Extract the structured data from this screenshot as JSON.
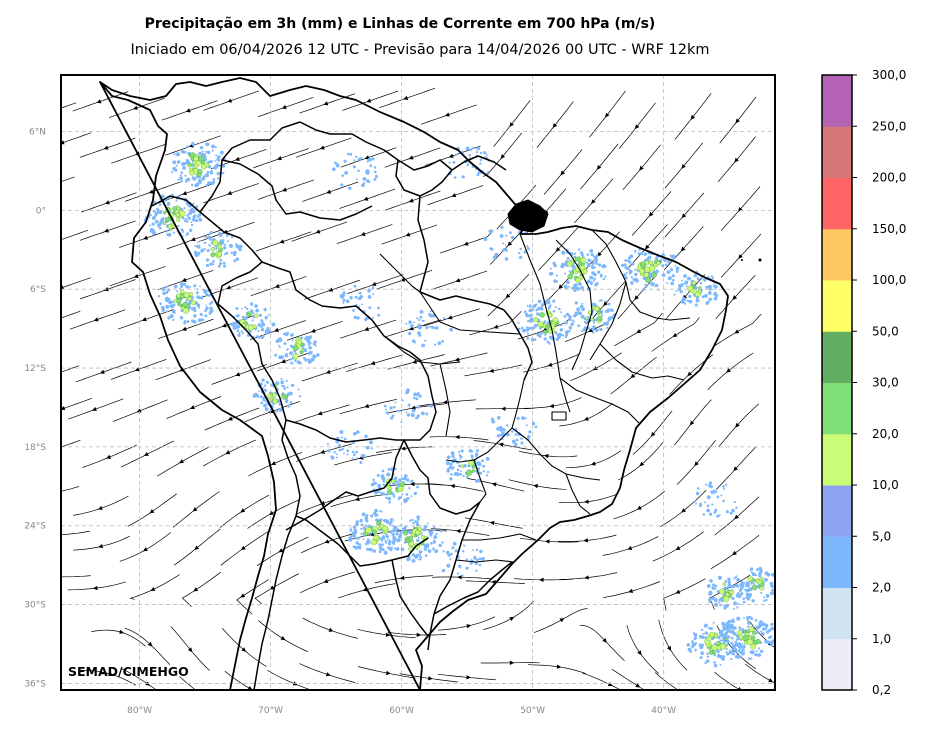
{
  "header": {
    "title": "Precipitação em 3h (mm) e Linhas de Corrente em 700 hPa (m/s)",
    "subtitle": "Iniciado em 06/04/2026 12 UTC - Previsão para 14/04/2026 00 UTC - WRF 12km"
  },
  "map": {
    "credit": "SEMAD/CIMEHGO",
    "lat_labels": [
      "6°N",
      "0°",
      "6°S",
      "12°S",
      "18°S",
      "24°S",
      "30°S",
      "36°S"
    ],
    "lon_labels": [
      "80°W",
      "70°W",
      "60°W",
      "50°W",
      "40°W"
    ],
    "lat_values": [
      6,
      0,
      -6,
      -12,
      -18,
      -24,
      -30,
      -36
    ],
    "lon_values": [
      -80,
      -70,
      -60,
      -50,
      -40
    ],
    "extent": {
      "lon_min": -86,
      "lon_max": -31.5,
      "lat_min": -36.5,
      "lat_max": 10.3
    },
    "grid_color": "#bbbbbb",
    "coast_color": "#000000"
  },
  "colorbar": {
    "labels": [
      "0,2",
      "1,0",
      "2,0",
      "5,0",
      "10,0",
      "20,0",
      "30,0",
      "50,0",
      "100,0",
      "150,0",
      "200,0",
      "250,0",
      "300,0"
    ],
    "colors": [
      "#ededfa",
      "#d0e4ef",
      "#7db8fd",
      "#8ea4f3",
      "#cbfc77",
      "#80de77",
      "#62ae62",
      "#ffff66",
      "#ffc865",
      "#ff6464",
      "#d57877",
      "#b563b5"
    ]
  },
  "rain_cells": [
    {
      "lon": -75.5,
      "lat": 3.5,
      "intensity": "high"
    },
    {
      "lon": -77.5,
      "lat": -0.5,
      "intensity": "high"
    },
    {
      "lon": -76.5,
      "lat": -7.0,
      "intensity": "high"
    },
    {
      "lon": -74.0,
      "lat": -3.0,
      "intensity": "med"
    },
    {
      "lon": -71.5,
      "lat": -8.5,
      "intensity": "med"
    },
    {
      "lon": -68.0,
      "lat": -10.5,
      "intensity": "med"
    },
    {
      "lon": -69.5,
      "lat": -14.0,
      "intensity": "med"
    },
    {
      "lon": -63.0,
      "lat": -7.0,
      "intensity": "low"
    },
    {
      "lon": -58.0,
      "lat": -9.0,
      "intensity": "low"
    },
    {
      "lon": -52.0,
      "lat": -2.5,
      "intensity": "low"
    },
    {
      "lon": -46.5,
      "lat": -4.5,
      "intensity": "high"
    },
    {
      "lon": -41.0,
      "lat": -4.5,
      "intensity": "high"
    },
    {
      "lon": -49.0,
      "lat": -8.5,
      "intensity": "high"
    },
    {
      "lon": -45.5,
      "lat": -8.0,
      "intensity": "med"
    },
    {
      "lon": -37.5,
      "lat": -6.0,
      "intensity": "med"
    },
    {
      "lon": -59.5,
      "lat": -15.0,
      "intensity": "low"
    },
    {
      "lon": -55.0,
      "lat": -19.5,
      "intensity": "med"
    },
    {
      "lon": -51.5,
      "lat": -16.5,
      "intensity": "low"
    },
    {
      "lon": -60.5,
      "lat": -21.0,
      "intensity": "med"
    },
    {
      "lon": -62.0,
      "lat": -24.5,
      "intensity": "high"
    },
    {
      "lon": -59.0,
      "lat": -25.0,
      "intensity": "high"
    },
    {
      "lon": -55.5,
      "lat": -26.5,
      "intensity": "low"
    },
    {
      "lon": -64.0,
      "lat": -18.0,
      "intensity": "low"
    },
    {
      "lon": -35.0,
      "lat": -29.0,
      "intensity": "med"
    },
    {
      "lon": -33.5,
      "lat": -32.5,
      "intensity": "high"
    },
    {
      "lon": -36.0,
      "lat": -33.0,
      "intensity": "high"
    },
    {
      "lon": -33.0,
      "lat": -28.5,
      "intensity": "med"
    },
    {
      "lon": -36.0,
      "lat": -22.0,
      "intensity": "low"
    },
    {
      "lon": -55.0,
      "lat": 3.5,
      "intensity": "low"
    },
    {
      "lon": -63.5,
      "lat": 3.0,
      "intensity": "low"
    }
  ]
}
